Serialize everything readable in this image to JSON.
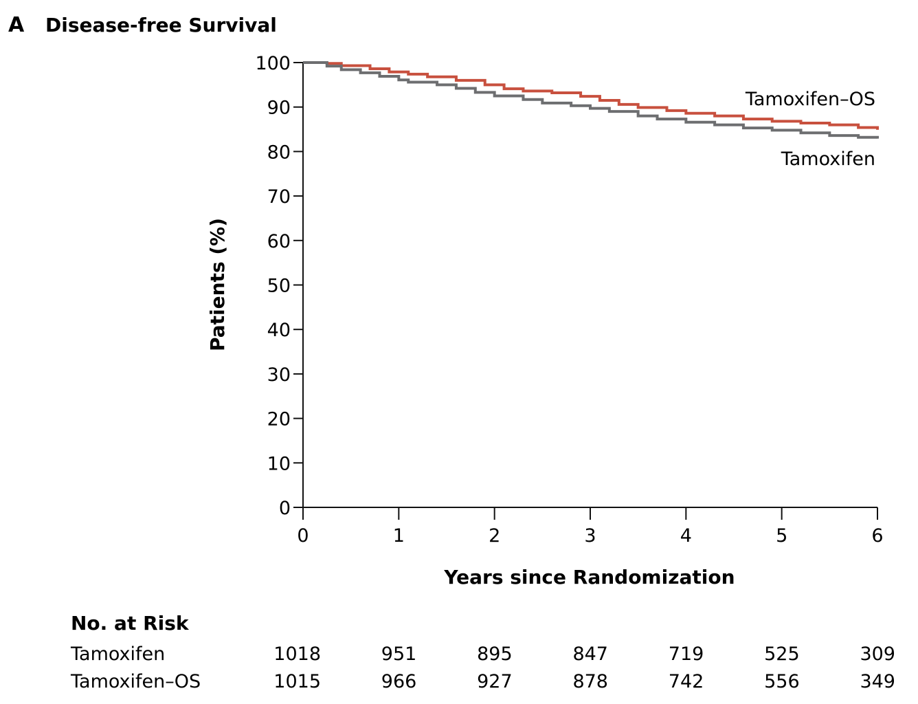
{
  "panel_letter": "A",
  "chart_data": {
    "type": "line",
    "title": "Disease-free Survival",
    "xlabel": "Years since Randomization",
    "ylabel": "Patients (%)",
    "xlim": [
      0,
      6
    ],
    "ylim": [
      0,
      100
    ],
    "x_ticks": [
      "0",
      "1",
      "2",
      "3",
      "4",
      "5",
      "6"
    ],
    "y_ticks": [
      "0",
      "10",
      "20",
      "30",
      "40",
      "50",
      "60",
      "70",
      "80",
      "90",
      "100"
    ],
    "grid": false,
    "step": true,
    "series": [
      {
        "name": "Tamoxifen–OS",
        "color": "#c8503e",
        "x": [
          0,
          0.25,
          0.4,
          0.7,
          0.9,
          1.1,
          1.3,
          1.6,
          1.9,
          2.1,
          2.3,
          2.6,
          2.9,
          3.1,
          3.3,
          3.5,
          3.8,
          4.0,
          4.3,
          4.6,
          4.9,
          5.2,
          5.5,
          5.8,
          6.0
        ],
        "y": [
          100,
          99.8,
          99.3,
          98.6,
          97.9,
          97.4,
          96.8,
          96.0,
          95.0,
          94.1,
          93.6,
          93.2,
          92.4,
          91.5,
          90.6,
          89.9,
          89.2,
          88.6,
          88.0,
          87.3,
          86.8,
          86.4,
          86.0,
          85.4,
          84.9
        ]
      },
      {
        "name": "Tamoxifen",
        "color": "#6d6e70",
        "x": [
          0,
          0.25,
          0.4,
          0.6,
          0.8,
          1.0,
          1.1,
          1.4,
          1.6,
          1.8,
          2.0,
          2.3,
          2.5,
          2.8,
          3.0,
          3.2,
          3.5,
          3.7,
          4.0,
          4.3,
          4.6,
          4.9,
          5.2,
          5.5,
          5.8,
          6.0
        ],
        "y": [
          100,
          99.2,
          98.4,
          97.7,
          96.9,
          96.1,
          95.6,
          95.0,
          94.2,
          93.3,
          92.5,
          91.7,
          90.9,
          90.3,
          89.7,
          89.0,
          88.0,
          87.3,
          86.6,
          86.0,
          85.3,
          84.8,
          84.2,
          83.6,
          83.2,
          82.9
        ]
      }
    ]
  },
  "risk_table": {
    "heading": "No. at Risk",
    "rows": [
      {
        "label": "Tamoxifen",
        "values": [
          "1018",
          "951",
          "895",
          "847",
          "719",
          "525",
          "309"
        ]
      },
      {
        "label": "Tamoxifen–OS",
        "values": [
          "1015",
          "966",
          "927",
          "878",
          "742",
          "556",
          "349"
        ]
      }
    ]
  }
}
